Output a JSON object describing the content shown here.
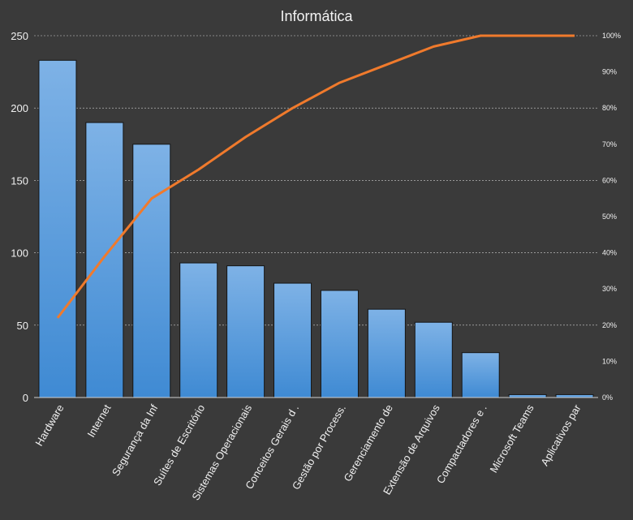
{
  "chart_data": {
    "type": "bar",
    "title": "Informática",
    "categories": [
      "Hardware",
      "Internet",
      "Segurança da Inf",
      "Suítes de Escritório",
      "Sistemas Operacionais",
      "Conceitos Gerais d .",
      "Gestão por Process.",
      "Gerenciamento de",
      "Extensão de Arquivos",
      "Compactadores e .",
      "Microsoft Teams",
      "Aplicativos par"
    ],
    "series": [
      {
        "type": "bar",
        "axis": "left",
        "values": [
          233,
          190,
          175,
          93,
          91,
          79,
          74,
          61,
          52,
          31,
          2,
          2
        ]
      },
      {
        "type": "line",
        "axis": "right",
        "values": [
          0.22,
          0.39,
          0.55,
          0.63,
          0.72,
          0.8,
          0.87,
          0.92,
          0.97,
          1.0,
          1.0,
          1.0
        ]
      }
    ],
    "ylim": [
      0,
      250
    ],
    "yticks": [
      "0",
      "50",
      "100",
      "150",
      "200",
      "250"
    ],
    "y2lim": [
      0,
      1
    ],
    "y2ticks": [
      "0%",
      "10%",
      "20%",
      "30%",
      "40%",
      "50%",
      "60%",
      "70%",
      "80%",
      "90%",
      "100%"
    ],
    "grid": true,
    "colors": {
      "bar": "#4a90d9",
      "bar_light": "#7eb2e6",
      "line": "#f07a2c",
      "background": "#3a3a3a"
    }
  }
}
